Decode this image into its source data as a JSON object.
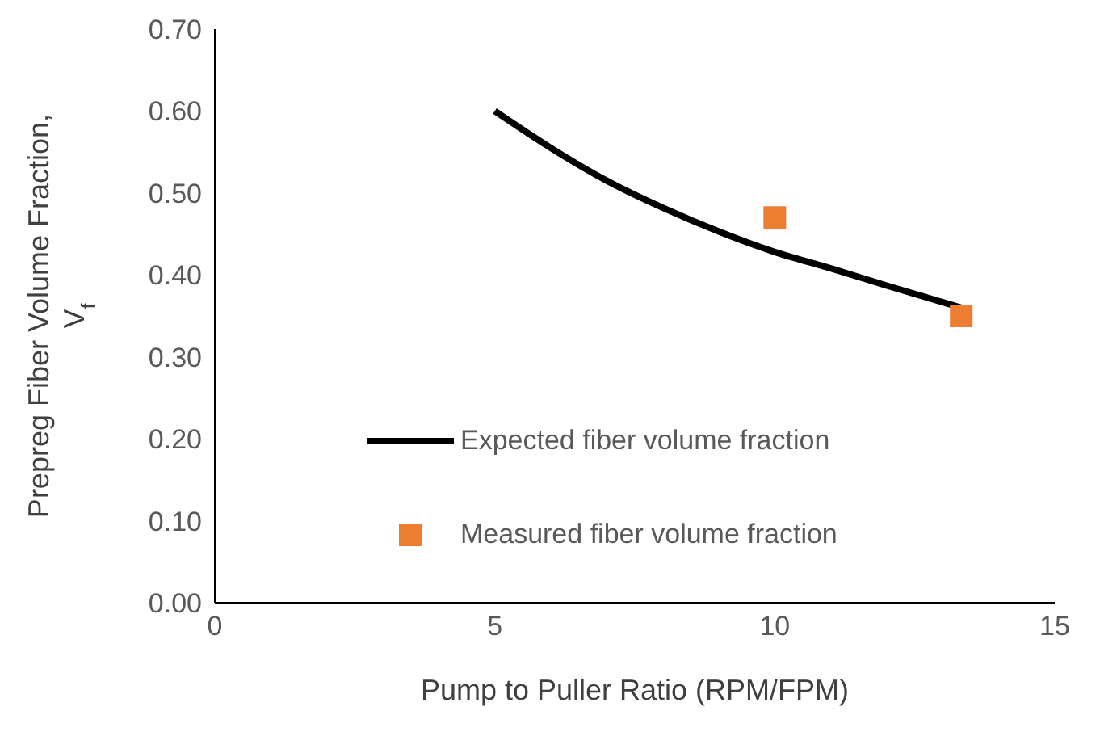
{
  "chart_data": {
    "type": "line",
    "xlabel": "Pump to Puller Ratio (RPM/FPM)",
    "ylabel": "Prepreg Fiber Volume Fraction, V$_{f}$",
    "xlim": [
      0,
      15
    ],
    "xticks": [
      0,
      5,
      10,
      15
    ],
    "ylim": [
      0,
      0.7
    ],
    "yticks": [
      {
        "value": 0,
        "label": "0.00"
      },
      {
        "value": 0.1,
        "label": "0.10"
      },
      {
        "value": 0.2,
        "label": "0.20"
      },
      {
        "value": 0.3,
        "label": "0.30"
      },
      {
        "value": 0.4,
        "label": "0.40"
      },
      {
        "value": 0.5,
        "label": "0.50"
      },
      {
        "value": 0.6,
        "label": "0.60"
      },
      {
        "value": 0.7,
        "label": "0.70"
      }
    ],
    "grid": false,
    "legend": "bottom left",
    "series": [
      {
        "name": "Expected fiber volume fraction",
        "color": "#000000",
        "marker": "none",
        "line_style": "solid",
        "x": [
          5,
          6,
          7,
          8,
          9,
          10,
          11,
          12,
          13.33
        ],
        "values": [
          0.6,
          0.555,
          0.515,
          0.482,
          0.453,
          0.428,
          0.408,
          0.387,
          0.36
        ]
      },
      {
        "name": "Measured fiber volume fraction",
        "type": "scatter",
        "color": "#ed7d31",
        "marker": "square",
        "x": [
          10,
          13.33
        ],
        "values": [
          0.47,
          0.35
        ]
      }
    ]
  }
}
